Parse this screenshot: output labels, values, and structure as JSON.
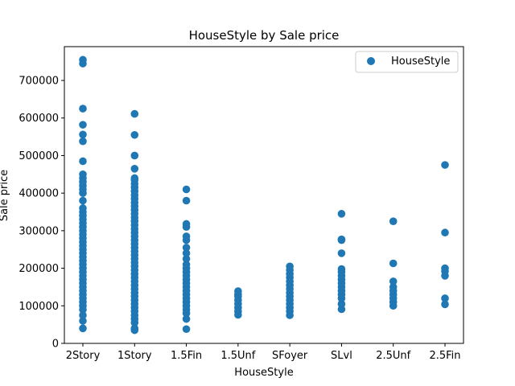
{
  "chart_data": {
    "type": "scatter",
    "title": "HouseStyle by Sale price",
    "xlabel": "HouseStyle",
    "ylabel": "Sale price",
    "categories": [
      "2Story",
      "1Story",
      "1.5Fin",
      "1.5Unf",
      "SFoyer",
      "SLvl",
      "2.5Unf",
      "2.5Fin"
    ],
    "ylim": [
      0,
      790000
    ],
    "yticks": [
      0,
      100000,
      200000,
      300000,
      400000,
      500000,
      600000,
      700000
    ],
    "ytick_labels": [
      "0",
      "100000",
      "200000",
      "300000",
      "400000",
      "500000",
      "600000",
      "700000"
    ],
    "grid": false,
    "legend": {
      "position": "top-right",
      "entries": [
        "HouseStyle"
      ]
    },
    "color": "#1f77b4",
    "series": [
      {
        "name": "HouseStyle",
        "points": {
          "2Story": [
            40000,
            60000,
            75000,
            90000,
            100000,
            110000,
            120000,
            130000,
            140000,
            150000,
            160000,
            170000,
            180000,
            190000,
            200000,
            210000,
            220000,
            230000,
            240000,
            250000,
            260000,
            270000,
            280000,
            290000,
            300000,
            310000,
            320000,
            330000,
            340000,
            350000,
            360000,
            380000,
            400000,
            410000,
            420000,
            430000,
            440000,
            450000,
            485000,
            538000,
            556000,
            582000,
            625000,
            745000,
            755000
          ],
          "1Story": [
            35000,
            40000,
            55000,
            65000,
            75000,
            85000,
            95000,
            105000,
            115000,
            125000,
            135000,
            145000,
            155000,
            165000,
            175000,
            185000,
            195000,
            205000,
            215000,
            225000,
            235000,
            245000,
            255000,
            265000,
            275000,
            285000,
            295000,
            305000,
            315000,
            325000,
            335000,
            345000,
            355000,
            365000,
            375000,
            385000,
            395000,
            405000,
            415000,
            425000,
            435000,
            440000,
            465000,
            500000,
            555000,
            611000
          ],
          "1.5Fin": [
            38000,
            65000,
            80000,
            90000,
            100000,
            110000,
            120000,
            130000,
            140000,
            150000,
            160000,
            170000,
            180000,
            190000,
            200000,
            210000,
            225000,
            240000,
            255000,
            275000,
            285000,
            310000,
            318000,
            380000,
            410000
          ],
          "1.5Unf": [
            76000,
            85000,
            95000,
            105000,
            115000,
            125000,
            130000,
            139000
          ],
          "SFoyer": [
            75000,
            85000,
            95000,
            105000,
            115000,
            125000,
            135000,
            145000,
            155000,
            165000,
            175000,
            185000,
            195000,
            205000
          ],
          "SLvl": [
            91000,
            105000,
            120000,
            130000,
            140000,
            150000,
            160000,
            170000,
            180000,
            190000,
            198000,
            240000,
            275000,
            277000,
            345000
          ],
          "2.5Unf": [
            100000,
            110000,
            120000,
            130000,
            140000,
            150000,
            165000,
            213000,
            325000
          ],
          "2.5Fin": [
            104000,
            120000,
            180000,
            192000,
            200000,
            295000,
            475000
          ]
        }
      }
    ]
  }
}
